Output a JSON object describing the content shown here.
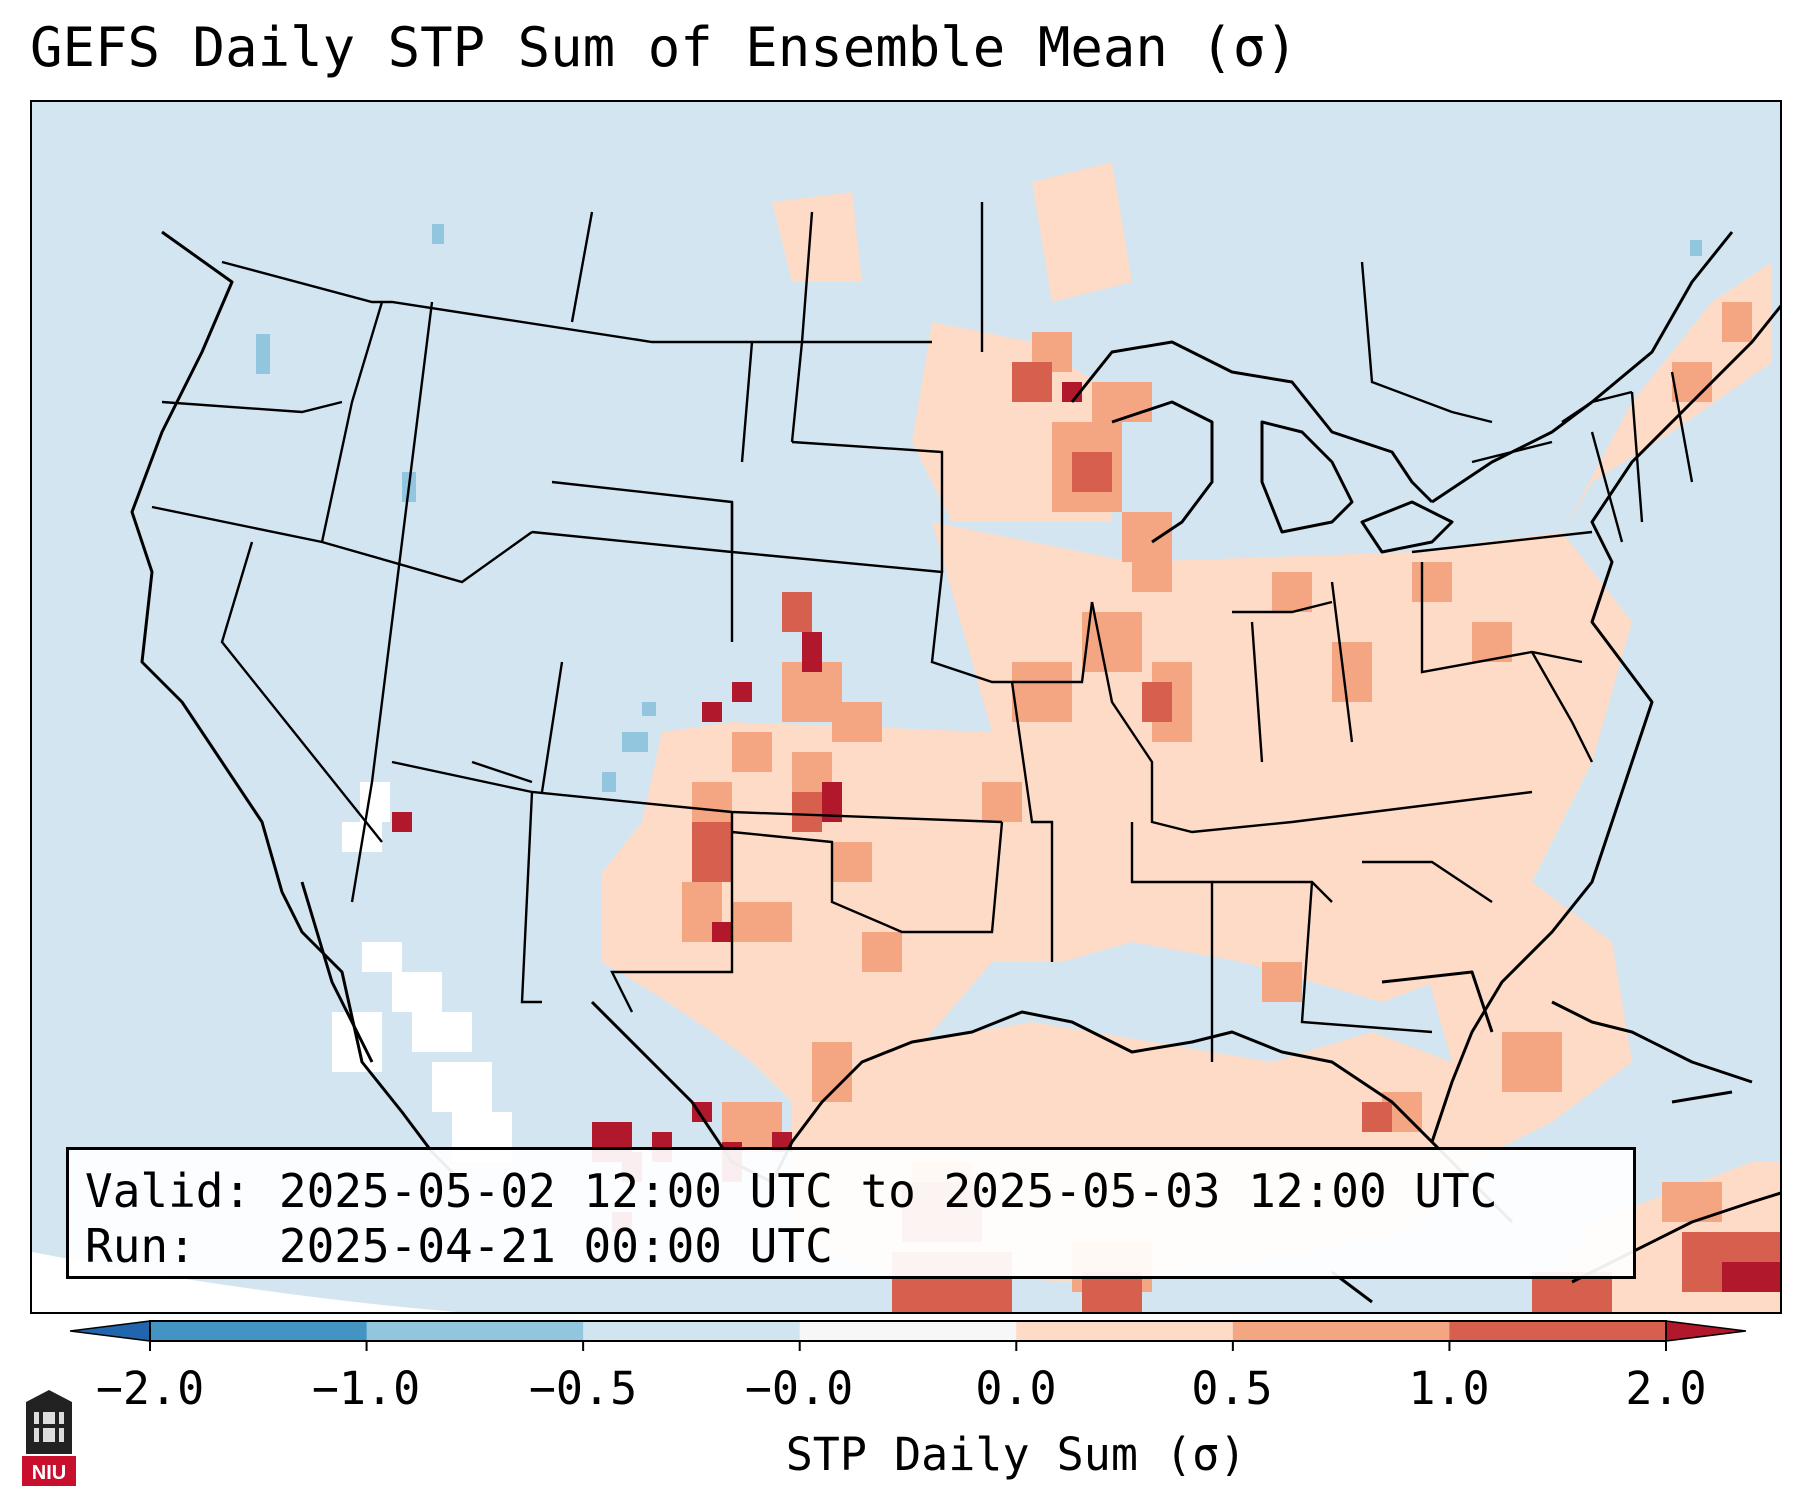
{
  "title": "GEFS Daily STP Sum of Ensemble Mean (σ)",
  "info": {
    "valid_label": "Valid:",
    "valid_value": "2025-05-02 12:00 UTC to 2025-05-03 12:00 UTC",
    "run_label": "Run:",
    "run_value": "2025-04-21 00:00 UTC"
  },
  "colorbar": {
    "label": "STP Daily Sum (σ)",
    "ticks": [
      "−2.0",
      "−1.0",
      "−0.5",
      "−0.0",
      "0.0",
      "0.5",
      "1.0",
      "2.0"
    ],
    "bin_colors": [
      "#4393c3",
      "#92c5de",
      "#d1e5f0",
      "#f7f7f7",
      "#fddbc7",
      "#f4a582",
      "#d6604d"
    ],
    "under_color": "#2166ac",
    "over_color": "#b2182b"
  },
  "legend_colors": {
    "ocean_background": "#d2e5f1",
    "near_zero": "#ffffff",
    "low_positive": "#fddbc7",
    "mid_positive": "#f4a582",
    "high_positive": "#d6604d",
    "extreme_positive": "#b2182b",
    "negative": "#92c5de"
  },
  "logo_text": "NIU"
}
